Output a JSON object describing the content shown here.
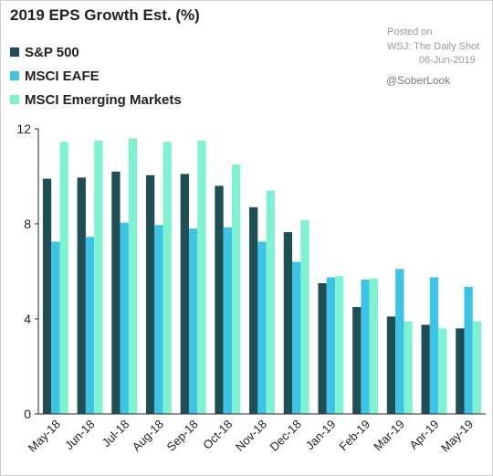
{
  "title": "2019 EPS Growth Est. (%)",
  "source": {
    "posted": "Posted on",
    "outlet": "WSJ: The Daily Shot",
    "date": "06-Jun-2019",
    "credit": "@SoberLook"
  },
  "colors": {
    "sp500": "#1f4e55",
    "eafe": "#3cc3e6",
    "em": "#7ff2d2",
    "axis": "#222222"
  },
  "chart_data": {
    "type": "bar",
    "title": "2019 EPS Growth Est. (%)",
    "categories": [
      "May-18",
      "Jun-18",
      "Jul-18",
      "Aug-18",
      "Sep-18",
      "Oct-18",
      "Nov-18",
      "Dec-18",
      "Jan-19",
      "Feb-19",
      "Mar-19",
      "Apr-19",
      "May-19"
    ],
    "series": [
      {
        "name": "S&P 500",
        "values": [
          9.9,
          9.95,
          10.2,
          10.05,
          10.1,
          9.6,
          8.7,
          7.65,
          5.5,
          4.5,
          4.1,
          3.75,
          3.6
        ]
      },
      {
        "name": "MSCI EAFE",
        "values": [
          7.25,
          7.45,
          8.05,
          7.95,
          7.8,
          7.85,
          7.25,
          6.4,
          5.75,
          5.65,
          6.1,
          5.75,
          5.35
        ]
      },
      {
        "name": "MSCI Emerging Markets",
        "values": [
          11.45,
          11.5,
          11.6,
          11.45,
          11.5,
          10.5,
          9.4,
          8.15,
          5.8,
          5.7,
          3.9,
          3.6,
          3.9
        ]
      }
    ],
    "ylim": [
      0,
      12
    ],
    "yticks": [
      "0",
      "4",
      "8",
      "12"
    ],
    "legend": "top-left",
    "grid": false
  }
}
